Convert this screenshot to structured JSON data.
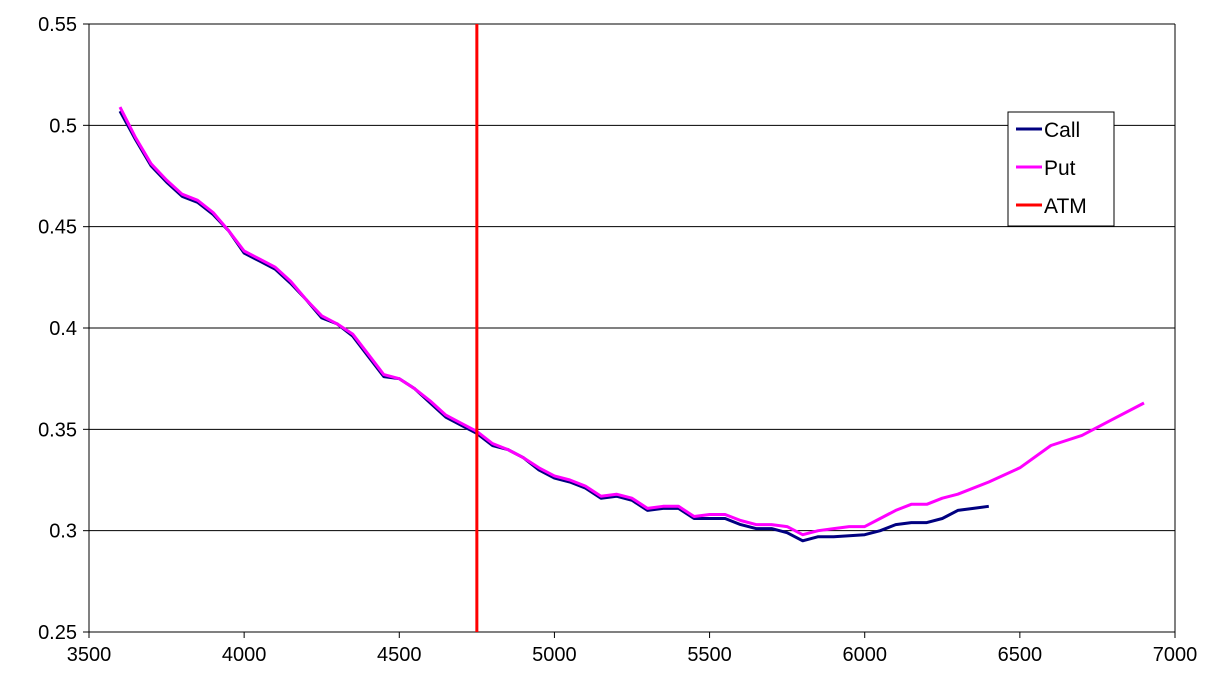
{
  "chart_data": {
    "type": "line",
    "title": "",
    "xlabel": "",
    "ylabel": "",
    "xlim": [
      3500,
      7000
    ],
    "ylim": [
      0.25,
      0.55
    ],
    "x_ticks": [
      "3500",
      "4000",
      "4500",
      "5000",
      "5500",
      "6000",
      "6500",
      "7000"
    ],
    "y_ticks": [
      "0.25",
      "0.3",
      "0.35",
      "0.4",
      "0.45",
      "0.5",
      "0.55"
    ],
    "grid": "horizontal",
    "legend_position": "right",
    "series": [
      {
        "name": "Call",
        "color": "#000080",
        "points": [
          [
            3600,
            0.507
          ],
          [
            3650,
            0.493
          ],
          [
            3700,
            0.48
          ],
          [
            3750,
            0.472
          ],
          [
            3800,
            0.465
          ],
          [
            3850,
            0.462
          ],
          [
            3900,
            0.456
          ],
          [
            3950,
            0.448
          ],
          [
            4000,
            0.437
          ],
          [
            4050,
            0.433
          ],
          [
            4100,
            0.429
          ],
          [
            4150,
            0.422
          ],
          [
            4200,
            0.414
          ],
          [
            4250,
            0.405
          ],
          [
            4300,
            0.402
          ],
          [
            4350,
            0.396
          ],
          [
            4400,
            0.386
          ],
          [
            4450,
            0.376
          ],
          [
            4500,
            0.375
          ],
          [
            4550,
            0.37
          ],
          [
            4600,
            0.363
          ],
          [
            4650,
            0.356
          ],
          [
            4700,
            0.352
          ],
          [
            4750,
            0.348
          ],
          [
            4800,
            0.342
          ],
          [
            4850,
            0.34
          ],
          [
            4900,
            0.336
          ],
          [
            4950,
            0.33
          ],
          [
            5000,
            0.326
          ],
          [
            5050,
            0.324
          ],
          [
            5100,
            0.321
          ],
          [
            5150,
            0.316
          ],
          [
            5200,
            0.317
          ],
          [
            5250,
            0.315
          ],
          [
            5300,
            0.31
          ],
          [
            5350,
            0.311
          ],
          [
            5400,
            0.311
          ],
          [
            5450,
            0.306
          ],
          [
            5500,
            0.306
          ],
          [
            5550,
            0.306
          ],
          [
            5600,
            0.303
          ],
          [
            5650,
            0.301
          ],
          [
            5700,
            0.301
          ],
          [
            5750,
            0.299
          ],
          [
            5800,
            0.295
          ],
          [
            5850,
            0.297
          ],
          [
            5900,
            0.297
          ],
          [
            5950,
            0.2975
          ],
          [
            6000,
            0.298
          ],
          [
            6050,
            0.3
          ],
          [
            6100,
            0.303
          ],
          [
            6150,
            0.304
          ],
          [
            6200,
            0.304
          ],
          [
            6250,
            0.306
          ],
          [
            6300,
            0.31
          ],
          [
            6350,
            0.311
          ],
          [
            6400,
            0.312
          ]
        ]
      },
      {
        "name": "Put",
        "color": "#ff00ff",
        "points": [
          [
            3600,
            0.509
          ],
          [
            3650,
            0.494
          ],
          [
            3700,
            0.481
          ],
          [
            3750,
            0.473
          ],
          [
            3800,
            0.466
          ],
          [
            3850,
            0.463
          ],
          [
            3900,
            0.457
          ],
          [
            3950,
            0.448
          ],
          [
            4000,
            0.438
          ],
          [
            4050,
            0.434
          ],
          [
            4100,
            0.43
          ],
          [
            4150,
            0.423
          ],
          [
            4200,
            0.414
          ],
          [
            4250,
            0.406
          ],
          [
            4300,
            0.402
          ],
          [
            4350,
            0.397
          ],
          [
            4400,
            0.387
          ],
          [
            4450,
            0.377
          ],
          [
            4500,
            0.375
          ],
          [
            4550,
            0.37
          ],
          [
            4600,
            0.364
          ],
          [
            4650,
            0.357
          ],
          [
            4700,
            0.353
          ],
          [
            4750,
            0.349
          ],
          [
            4800,
            0.343
          ],
          [
            4850,
            0.34
          ],
          [
            4900,
            0.336
          ],
          [
            4950,
            0.331
          ],
          [
            5000,
            0.327
          ],
          [
            5050,
            0.325
          ],
          [
            5100,
            0.322
          ],
          [
            5150,
            0.317
          ],
          [
            5200,
            0.318
          ],
          [
            5250,
            0.316
          ],
          [
            5300,
            0.311
          ],
          [
            5350,
            0.312
          ],
          [
            5400,
            0.312
          ],
          [
            5450,
            0.307
          ],
          [
            5500,
            0.308
          ],
          [
            5550,
            0.308
          ],
          [
            5600,
            0.305
          ],
          [
            5650,
            0.303
          ],
          [
            5700,
            0.303
          ],
          [
            5750,
            0.302
          ],
          [
            5800,
            0.298
          ],
          [
            5850,
            0.3
          ],
          [
            5900,
            0.301
          ],
          [
            5950,
            0.302
          ],
          [
            6000,
            0.302
          ],
          [
            6050,
            0.306
          ],
          [
            6100,
            0.31
          ],
          [
            6150,
            0.313
          ],
          [
            6200,
            0.313
          ],
          [
            6250,
            0.316
          ],
          [
            6300,
            0.318
          ],
          [
            6400,
            0.324
          ],
          [
            6500,
            0.331
          ],
          [
            6600,
            0.342
          ],
          [
            6700,
            0.347
          ],
          [
            6800,
            0.355
          ],
          [
            6900,
            0.363
          ]
        ]
      },
      {
        "name": "ATM",
        "color": "#ff0000",
        "vertical_x": 4750
      }
    ]
  }
}
